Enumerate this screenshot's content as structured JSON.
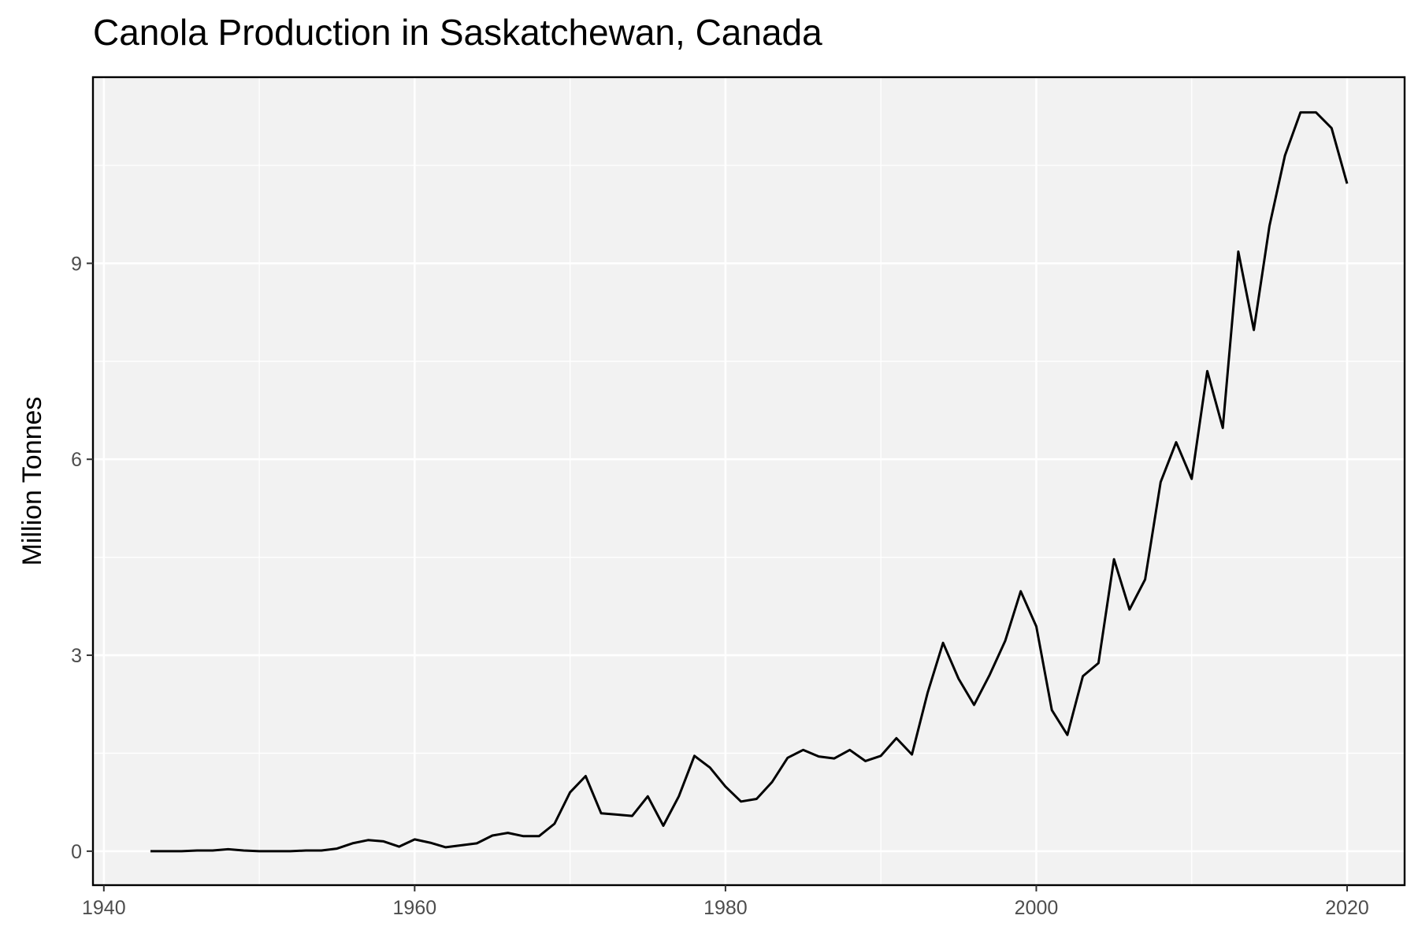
{
  "chart_data": {
    "type": "line",
    "title": "Canola Production in Saskatchewan, Canada",
    "xlabel": "",
    "ylabel": "Million Tonnes",
    "xlim": [
      1939.3,
      2023.7
    ],
    "ylim": [
      -0.52,
      11.85
    ],
    "x_ticks": [
      1940,
      1960,
      1980,
      2000,
      2020
    ],
    "y_ticks": [
      0,
      3,
      6,
      9
    ],
    "grid": true,
    "legend": "none",
    "colors": {
      "panel": "#f2f2f2",
      "grid": "#ffffff",
      "line": "#000000",
      "tick_text": "#4d4d4d"
    },
    "series": [
      {
        "x": [
          1943,
          1944,
          1945,
          1946,
          1947,
          1948,
          1949,
          1950,
          1951,
          1952,
          1953,
          1954,
          1955,
          1956,
          1957,
          1958,
          1959,
          1960,
          1961,
          1962,
          1963,
          1964,
          1965,
          1966,
          1967,
          1968,
          1969,
          1970,
          1971,
          1972,
          1973,
          1974,
          1975,
          1976,
          1977,
          1978,
          1979,
          1980,
          1981,
          1982,
          1983,
          1984,
          1985,
          1986,
          1987,
          1988,
          1989,
          1990,
          1991,
          1992,
          1993,
          1994,
          1995,
          1996,
          1997,
          1998,
          1999,
          2000,
          2001,
          2002,
          2003,
          2004,
          2005,
          2006,
          2007,
          2008,
          2009,
          2010,
          2011,
          2012,
          2013,
          2014,
          2015,
          2016,
          2017,
          2018,
          2019,
          2020
        ],
        "values": [
          0.0,
          0.0,
          0.0,
          0.01,
          0.01,
          0.03,
          0.01,
          0.0,
          0.0,
          0.0,
          0.01,
          0.01,
          0.04,
          0.12,
          0.17,
          0.15,
          0.07,
          0.18,
          0.13,
          0.06,
          0.09,
          0.12,
          0.24,
          0.28,
          0.23,
          0.23,
          0.42,
          0.9,
          1.15,
          0.58,
          0.56,
          0.54,
          0.84,
          0.39,
          0.84,
          1.46,
          1.28,
          0.99,
          0.76,
          0.8,
          1.06,
          1.43,
          1.55,
          1.45,
          1.42,
          1.55,
          1.38,
          1.46,
          1.73,
          1.48,
          2.42,
          3.19,
          2.64,
          2.24,
          2.7,
          3.22,
          3.98,
          3.44,
          2.16,
          1.78,
          2.68,
          2.88,
          4.47,
          3.7,
          4.16,
          5.65,
          6.26,
          5.7,
          7.35,
          6.48,
          9.18,
          7.98,
          9.57,
          10.65,
          11.31,
          11.31,
          11.07,
          10.22
        ]
      }
    ]
  }
}
